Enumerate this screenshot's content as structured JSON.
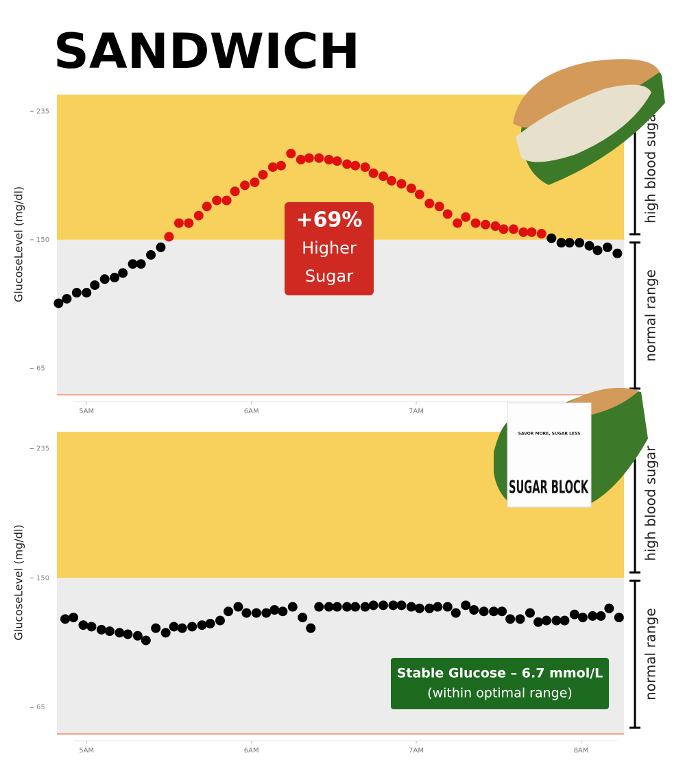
{
  "title": "SANDWICH",
  "product": {
    "tagline": "SAVOR MORE, SUGAR LESS",
    "name": "SUGAR BLOCK"
  },
  "chart_data": [
    {
      "type": "scatter",
      "y_label": "GlucoseLevel (mg/dl)",
      "xlim": [
        4.82,
        8.26
      ],
      "ylim": [
        48,
        246
      ],
      "xticks": [
        {
          "value": 5,
          "label": "5AM"
        },
        {
          "value": 6,
          "label": "6AM"
        },
        {
          "value": 7,
          "label": "7AM"
        }
      ],
      "yticks": [
        65,
        150,
        235
      ],
      "bands": [
        {
          "from": 150,
          "to": 246,
          "color": "#f7d15b",
          "label": "high blood sugar"
        },
        {
          "from": 48,
          "to": 150,
          "color": "#ececec",
          "label": "normal range"
        }
      ],
      "annotation": {
        "lines": [
          "+69%",
          "Higher",
          "Sugar"
        ],
        "color": "#cf2a21"
      },
      "series": [
        {
          "color": "#000000",
          "x": [
            4.83,
            4.88,
            4.94,
            5.0,
            5.05,
            5.11,
            5.17,
            5.22,
            5.28,
            5.33,
            5.39,
            5.45
          ],
          "values": [
            108,
            111,
            115,
            115,
            120,
            124,
            125,
            128,
            134,
            134,
            140,
            145
          ]
        },
        {
          "color": "#e0100f",
          "x": [
            5.5,
            5.56,
            5.62,
            5.68,
            5.73,
            5.79,
            5.85,
            5.9,
            5.96,
            6.02,
            6.07,
            6.13,
            6.18,
            6.24,
            6.3,
            6.35,
            6.41,
            6.47,
            6.52,
            6.58,
            6.63,
            6.69,
            6.74,
            6.8,
            6.85,
            6.91,
            6.97,
            7.02,
            7.08,
            7.14,
            7.19,
            7.25,
            7.3,
            7.36,
            7.42,
            7.48,
            7.53,
            7.59,
            7.65,
            7.7,
            7.76
          ],
          "values": [
            152,
            161,
            161,
            166,
            172,
            176,
            176,
            182,
            186,
            188,
            193,
            198,
            199,
            207,
            203,
            204,
            204,
            203,
            202,
            200,
            199,
            198,
            194,
            192,
            189,
            187,
            184,
            180,
            174,
            172,
            167,
            161,
            165,
            161,
            160,
            159,
            157,
            157,
            155,
            155,
            154
          ]
        },
        {
          "color": "#000000",
          "x": [
            7.82,
            7.88,
            7.93,
            7.99,
            8.05,
            8.1,
            8.16,
            8.22
          ],
          "values": [
            151,
            148,
            148,
            148,
            146,
            143,
            145,
            141
          ]
        }
      ]
    },
    {
      "type": "scatter",
      "y_label": "GlucoseLevel (mg/dl)",
      "xlim": [
        4.82,
        8.26
      ],
      "ylim": [
        48,
        246
      ],
      "xticks": [
        {
          "value": 5,
          "label": "5AM"
        },
        {
          "value": 6,
          "label": "6AM"
        },
        {
          "value": 7,
          "label": "7AM"
        },
        {
          "value": 8,
          "label": "8AM"
        }
      ],
      "yticks": [
        65,
        150,
        235
      ],
      "bands": [
        {
          "from": 150,
          "to": 246,
          "color": "#f7d15b",
          "label": "high blood sugar"
        },
        {
          "from": 48,
          "to": 150,
          "color": "#ececec",
          "label": "normal range"
        }
      ],
      "annotation": {
        "lines": [
          "Stable Glucose – 6.7 mmol/L",
          "(within optimal range)"
        ],
        "color": "#1d6b1f"
      },
      "series": [
        {
          "color": "#000000",
          "x": [
            4.87,
            4.92,
            4.98,
            5.03,
            5.09,
            5.14,
            5.2,
            5.25,
            5.31,
            5.36,
            5.42,
            5.48,
            5.53,
            5.58,
            5.64,
            5.7,
            5.75,
            5.81,
            5.86,
            5.92,
            5.97,
            6.03,
            6.09,
            6.14,
            6.19,
            6.25,
            6.31,
            6.36,
            6.41,
            6.47,
            6.52,
            6.58,
            6.63,
            6.69,
            6.74,
            6.8,
            6.86,
            6.91,
            6.97,
            7.02,
            7.08,
            7.13,
            7.19,
            7.24,
            7.3,
            7.35,
            7.41,
            7.47,
            7.52,
            7.57,
            7.63,
            7.69,
            7.74,
            7.79,
            7.85,
            7.9,
            7.96,
            8.01,
            8.07,
            8.12,
            8.17,
            8.23
          ],
          "values": [
            123,
            124,
            119,
            118,
            116,
            115,
            114,
            113,
            112,
            109,
            117,
            114,
            118,
            117,
            118,
            119,
            120,
            122,
            128,
            131,
            127,
            127,
            127,
            129,
            128,
            131,
            124,
            117,
            131,
            131,
            131,
            131,
            131,
            131,
            132,
            132,
            132,
            132,
            131,
            130,
            130,
            131,
            131,
            127,
            132,
            129,
            128,
            128,
            128,
            123,
            123,
            127,
            121,
            122,
            122,
            122,
            126,
            124,
            125,
            125,
            130,
            124
          ]
        }
      ]
    }
  ]
}
